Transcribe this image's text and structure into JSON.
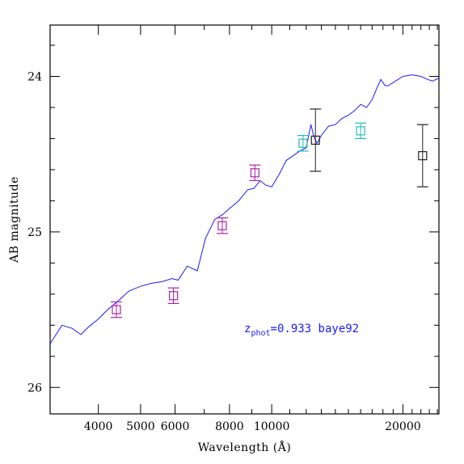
{
  "chart_data": {
    "type": "scatter",
    "xlabel": "Wavelength (Å)",
    "ylabel": "AB magnitude",
    "x_scale": "log",
    "xlim": [
      3100,
      24200
    ],
    "ylim": [
      26.17,
      23.67
    ],
    "y_inverted": true,
    "x_ticks": [
      4000,
      5000,
      6000,
      8000,
      10000,
      20000
    ],
    "x_tick_labels": [
      "4000",
      "5000",
      "6000",
      "8000",
      "10000",
      "20000"
    ],
    "y_ticks": [
      24,
      25,
      26
    ],
    "y_tick_labels": [
      "24",
      "25",
      "26"
    ],
    "annotation": {
      "base": "z",
      "subscript": "phot",
      "text": "=0.933 baye92",
      "color": "#1a1aff"
    },
    "series": [
      {
        "type": "line",
        "color": "#1a1aff",
        "x": [
          3100,
          3300,
          3480,
          3650,
          3800,
          4000,
          4200,
          4500,
          4700,
          5000,
          5300,
          5600,
          5900,
          6100,
          6400,
          6750,
          7050,
          7400,
          7700,
          8000,
          8400,
          8800,
          9100,
          9400,
          9700,
          10000,
          10400,
          10800,
          11200,
          11600,
          12000,
          12300,
          12500,
          12700,
          13000,
          13500,
          14000,
          14500,
          15000,
          15500,
          16000,
          16500,
          17000,
          17400,
          17800,
          18200,
          18500,
          19000,
          20000,
          21000,
          22000,
          22800,
          23400,
          24200
        ],
        "y": [
          25.72,
          25.6,
          25.62,
          25.66,
          25.61,
          25.56,
          25.5,
          25.43,
          25.38,
          25.35,
          25.33,
          25.32,
          25.3,
          25.31,
          25.22,
          25.25,
          25.04,
          24.92,
          24.89,
          24.85,
          24.8,
          24.73,
          24.72,
          24.67,
          24.7,
          24.71,
          24.63,
          24.54,
          24.51,
          24.48,
          24.46,
          24.31,
          24.39,
          24.43,
          24.38,
          24.32,
          24.31,
          24.27,
          24.25,
          24.22,
          24.18,
          24.2,
          24.15,
          24.08,
          24.02,
          24.06,
          24.06,
          24.04,
          24.0,
          23.99,
          24.0,
          24.02,
          24.03,
          24.01
        ]
      },
      {
        "type": "points",
        "color": "#aa22aa",
        "x": [
          4400,
          5950,
          7700,
          9150
        ],
        "y": [
          25.5,
          25.41,
          24.96,
          24.62
        ],
        "yerr": [
          0.05,
          0.05,
          0.05,
          0.05
        ]
      },
      {
        "type": "points",
        "color": "#22bbbb",
        "x": [
          11800,
          16000
        ],
        "y": [
          24.43,
          24.35
        ],
        "yerr": [
          0.05,
          0.05
        ]
      },
      {
        "type": "points",
        "color": "#222222",
        "x": [
          12600,
          22200
        ],
        "y": [
          24.41,
          24.51
        ],
        "yerr": [
          0.2,
          0.2
        ]
      }
    ]
  }
}
